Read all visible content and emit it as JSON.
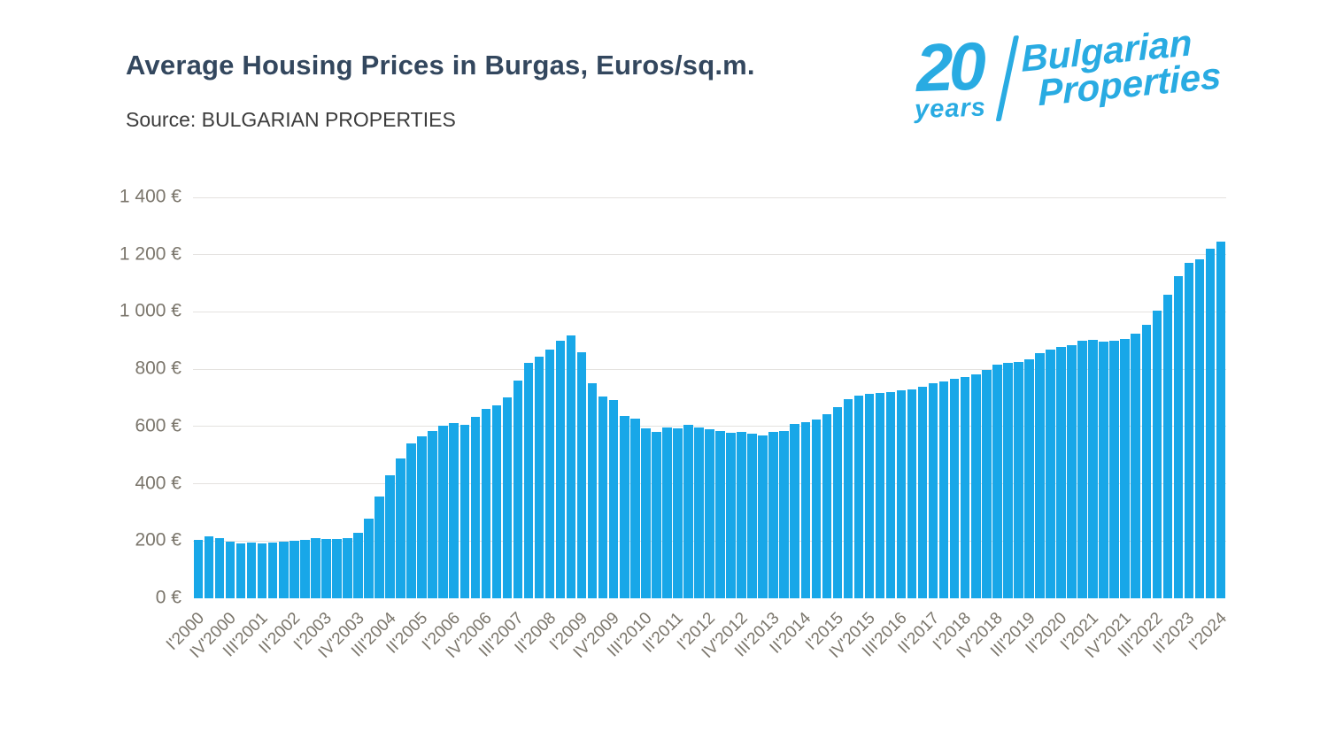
{
  "header": {
    "title": "Average Housing Prices in Burgas, Euros/sq.m.",
    "source": "Source: BULGARIAN PROPERTIES"
  },
  "logo": {
    "number": "20",
    "years": "years",
    "line1": "Bulgarian",
    "line2": "Properties",
    "color": "#29abe2"
  },
  "colors": {
    "bar": "#18a7e8",
    "title": "#33475e",
    "source": "#3c3c3c",
    "axis_label": "#7b766c",
    "gridline": "#e4e2df",
    "background": "#ffffff"
  },
  "chart_data": {
    "type": "bar",
    "title": "Average Housing Prices in Burgas, Euros/sq.m.",
    "unit": "EUR per sq.m.",
    "grid": true,
    "legend": "none",
    "ylim": [
      0,
      1400
    ],
    "ytick_values": [
      0,
      200,
      400,
      600,
      800,
      1000,
      1200,
      1400
    ],
    "ytick_labels": [
      "0 €",
      "200 €",
      "400 €",
      "600 €",
      "800 €",
      "1 000 €",
      "1 200 €",
      "1 400 €"
    ],
    "xtick_every": 3,
    "categories": [
      "I'2000",
      "II'2000",
      "III'2000",
      "IV'2000",
      "I'2001",
      "II'2001",
      "III'2001",
      "IV'2001",
      "I'2002",
      "II'2002",
      "III'2002",
      "IV'2002",
      "I'2003",
      "II'2003",
      "III'2003",
      "IV'2003",
      "I'2004",
      "II'2004",
      "III'2004",
      "IV'2004",
      "I'2005",
      "II'2005",
      "III'2005",
      "IV'2005",
      "I'2006",
      "II'2006",
      "III'2006",
      "IV'2006",
      "I'2007",
      "II'2007",
      "III'2007",
      "IV'2007",
      "I'2008",
      "II'2008",
      "III'2008",
      "IV'2008",
      "I'2009",
      "II'2009",
      "III'2009",
      "IV'2009",
      "I'2010",
      "II'2010",
      "III'2010",
      "IV'2010",
      "I'2011",
      "II'2011",
      "III'2011",
      "IV'2011",
      "I'2012",
      "II'2012",
      "III'2012",
      "IV'2012",
      "I'2013",
      "II'2013",
      "III'2013",
      "IV'2013",
      "I'2014",
      "II'2014",
      "III'2014",
      "IV'2014",
      "I'2015",
      "II'2015",
      "III'2015",
      "IV'2015",
      "I'2016",
      "II'2016",
      "III'2016",
      "IV'2016",
      "I'2017",
      "II'2017",
      "III'2017",
      "IV'2017",
      "I'2018",
      "II'2018",
      "III'2018",
      "IV'2018",
      "I'2019",
      "II'2019",
      "III'2019",
      "IV'2019",
      "I'2020",
      "II'2020",
      "III'2020",
      "IV'2020",
      "I'2021",
      "II'2021",
      "III'2021",
      "IV'2021",
      "I'2022",
      "II'2022",
      "III'2022",
      "IV'2022",
      "I'2023",
      "II'2023",
      "III'2023",
      "IV'2023",
      "I'2024"
    ],
    "values": [
      205,
      215,
      210,
      197,
      193,
      195,
      191,
      195,
      198,
      201,
      204,
      209,
      207,
      208,
      210,
      230,
      278,
      356,
      429,
      488,
      540,
      567,
      583,
      604,
      613,
      605,
      633,
      660,
      675,
      702,
      760,
      822,
      843,
      870,
      900,
      918,
      858,
      752,
      705,
      693,
      637,
      626,
      593,
      580,
      595,
      593,
      606,
      595,
      590,
      585,
      578,
      581,
      575,
      570,
      580,
      585,
      608,
      614,
      625,
      644,
      668,
      695,
      709,
      713,
      716,
      721,
      725,
      730,
      738,
      750,
      758,
      765,
      773,
      781,
      797,
      815,
      822,
      825,
      833,
      855,
      870,
      878,
      885,
      900,
      902,
      897,
      898,
      905,
      924,
      955,
      1003,
      1060,
      1125,
      1170,
      1185,
      1222,
      1245
    ]
  }
}
